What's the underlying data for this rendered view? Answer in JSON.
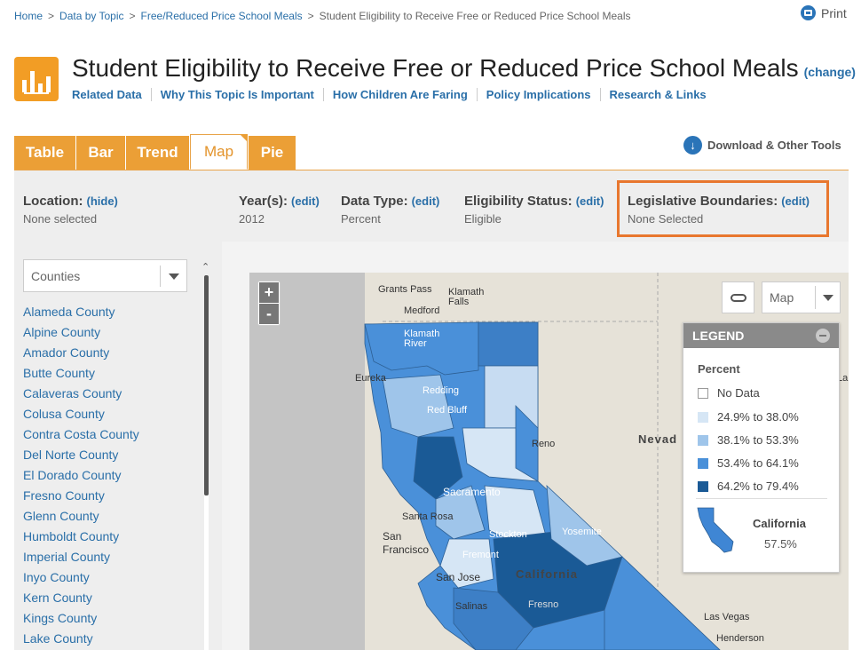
{
  "breadcrumb": {
    "items": [
      "Home",
      "Data by Topic",
      "Free/Reduced Price School Meals"
    ],
    "current": "Student Eligibility to Receive Free or Reduced Price School Meals"
  },
  "print_label": "Print",
  "page": {
    "title": "Student Eligibility to Receive Free or Reduced Price School Meals",
    "change_label": "(change)"
  },
  "subnav": [
    "Related Data",
    "Why This Topic Is Important",
    "How Children Are Faring",
    "Policy Implications",
    "Research & Links"
  ],
  "tabs": [
    "Table",
    "Bar",
    "Trend",
    "Map",
    "Pie"
  ],
  "active_tab": "Map",
  "download_label": "Download & Other Tools",
  "filters": {
    "location": {
      "label": "Location:",
      "action": "(hide)",
      "value": "None selected"
    },
    "years": {
      "label": "Year(s):",
      "action": "(edit)",
      "value": "2012"
    },
    "data_type": {
      "label": "Data Type:",
      "action": "(edit)",
      "value": "Percent"
    },
    "eligibility": {
      "label": "Eligibility Status:",
      "action": "(edit)",
      "value": "Eligible"
    },
    "legislative": {
      "label": "Legislative Boundaries:",
      "action": "(edit)",
      "value": "None Selected"
    }
  },
  "sidebar": {
    "select_value": "Counties",
    "counties": [
      "Alameda County",
      "Alpine County",
      "Amador County",
      "Butte County",
      "Calaveras County",
      "Colusa County",
      "Contra Costa County",
      "Del Norte County",
      "El Dorado County",
      "Fresno County",
      "Glenn County",
      "Humboldt County",
      "Imperial County",
      "Inyo County",
      "Kern County",
      "Kings County",
      "Lake County"
    ]
  },
  "map": {
    "zoom_in": "+",
    "zoom_out": "-",
    "layer_select": "Map",
    "labels": {
      "grants_pass": "Grants Pass",
      "klamath_falls": "Klamath\nFalls",
      "medford": "Medford",
      "eureka": "Eureka",
      "redding": "Redding",
      "red_bluff": "Red Bluff",
      "reno": "Reno",
      "nevada": "Nevad",
      "sacramento": "Sacramento",
      "santa_rosa": "Santa Rosa",
      "san_francisco": "San\nFrancisco",
      "stockton": "Stockton",
      "fremont": "Fremont",
      "san_jose": "San Jose",
      "yosemite": "Yosemite",
      "california": "California",
      "fresno": "Fresno",
      "salinas": "Salinas",
      "las_vegas": "Las Vegas",
      "henderson": "Henderson",
      "klamath_river": "Klamath\nRiver",
      "la": "La"
    }
  },
  "legend": {
    "title": "LEGEND",
    "measure": "Percent",
    "items": [
      {
        "label": "No Data",
        "color": "#ffffff"
      },
      {
        "label": "24.9% to 38.0%",
        "color": "#d6e6f5"
      },
      {
        "label": "38.1% to 53.3%",
        "color": "#9fc5ea"
      },
      {
        "label": "53.4% to 64.1%",
        "color": "#4a90d9"
      },
      {
        "label": "64.2% to 79.4%",
        "color": "#1a5a96"
      }
    ],
    "state_name": "California",
    "state_value": "57.5%",
    "state_color": "#3f86d4"
  },
  "colors": {
    "accent_orange": "#eb9f36",
    "link_blue": "#2a6fa8",
    "highlight_box": "#e8772e"
  }
}
